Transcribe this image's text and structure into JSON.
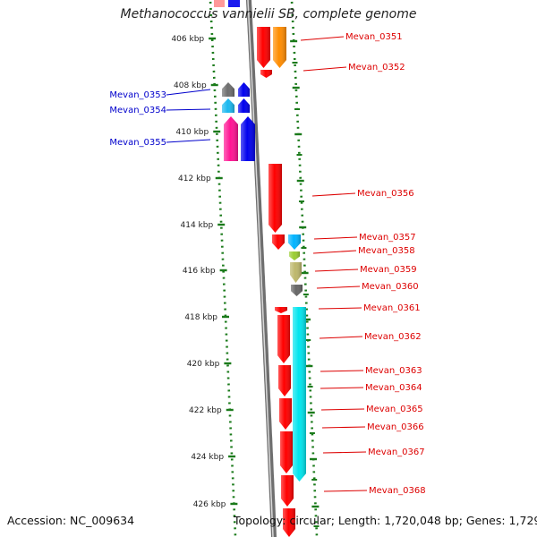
{
  "title": "Methanococcus vannielii SB, complete genome",
  "accession_text": "Accession: NC_009634",
  "topology_text": "Topology: circular; Length: 1,720,048 bp; Genes: 1,729",
  "colors": {
    "backbone": "#8a8a8a",
    "ruler_tick": "#1a7a1a",
    "forward_label": "#0000cc",
    "reverse_label": "#dd0000"
  },
  "ruler": {
    "unit": "kbp",
    "ticks": [
      406,
      408,
      410,
      412,
      414,
      416,
      418,
      420,
      422,
      424,
      426
    ]
  },
  "genes": [
    {
      "label": "Mevan_0351",
      "strand": "reverse",
      "color": "#ff0000"
    },
    {
      "label": "",
      "strand": "reverse",
      "color": "#ff8c00"
    },
    {
      "label": "Mevan_0352",
      "strand": "reverse",
      "color": "#ff0000"
    },
    {
      "label": "Mevan_0353",
      "strand": "forward",
      "color": "#6e6e6e"
    },
    {
      "label": "",
      "strand": "forward",
      "color": "#0000ee"
    },
    {
      "label": "Mevan_0354",
      "strand": "forward",
      "color": "#1ab8f0"
    },
    {
      "label": "",
      "strand": "forward",
      "color": "#0000ee"
    },
    {
      "label": "Mevan_0355",
      "strand": "forward",
      "color": "#ff1493"
    },
    {
      "label": "",
      "strand": "forward",
      "color": "#0000ee"
    },
    {
      "label": "Mevan_0356",
      "strand": "reverse",
      "color": "#ff0000"
    },
    {
      "label": "Mevan_0357",
      "strand": "reverse",
      "color": "#ff0000"
    },
    {
      "label": "",
      "strand": "reverse",
      "color": "#00b4ff"
    },
    {
      "label": "Mevan_0358",
      "strand": "reverse",
      "color": "#9acd32"
    },
    {
      "label": "Mevan_0359",
      "strand": "reverse",
      "color": "#bdb76b"
    },
    {
      "label": "Mevan_0360",
      "strand": "reverse",
      "color": "#666666"
    },
    {
      "label": "Mevan_0361",
      "strand": "reverse",
      "color": "#ff0000"
    },
    {
      "label": "Mevan_0362",
      "strand": "reverse",
      "color": "#00e5ee"
    },
    {
      "label": "Mevan_0363",
      "strand": "reverse",
      "color": "#ff0000"
    },
    {
      "label": "Mevan_0364",
      "strand": "reverse",
      "color": "#ff0000"
    },
    {
      "label": "Mevan_0365",
      "strand": "reverse",
      "color": "#ff0000"
    },
    {
      "label": "Mevan_0366",
      "strand": "reverse",
      "color": "#ff0000"
    },
    {
      "label": "Mevan_0367",
      "strand": "reverse",
      "color": "#ff0000"
    },
    {
      "label": "Mevan_0368",
      "strand": "reverse",
      "color": "#ff0000"
    }
  ]
}
